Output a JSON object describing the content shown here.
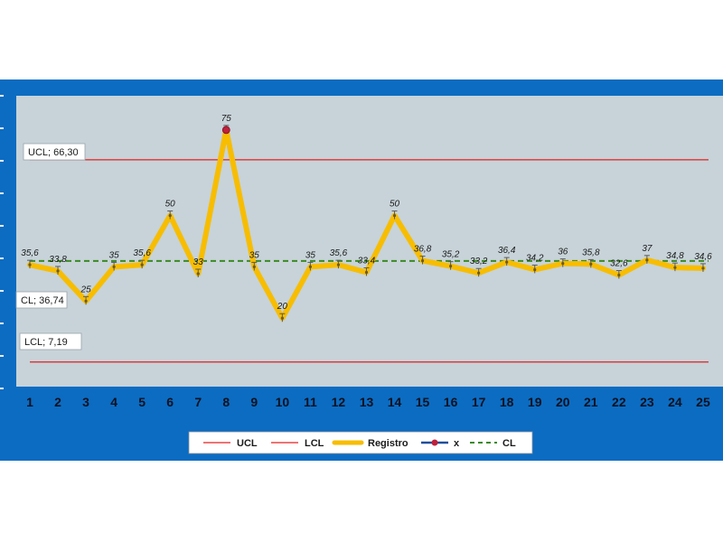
{
  "chart_data": {
    "type": "line",
    "title": "",
    "xlabel": "",
    "ylabel": "",
    "ylim": [
      0,
      85
    ],
    "grid": false,
    "legend_placement": "bottom",
    "x": [
      1,
      2,
      3,
      4,
      5,
      6,
      7,
      8,
      9,
      10,
      11,
      12,
      13,
      14,
      15,
      16,
      17,
      18,
      19,
      20,
      21,
      22,
      23,
      24,
      25
    ],
    "x_tick_labels": [
      "1",
      "2",
      "3",
      "4",
      "5",
      "6",
      "7",
      "8",
      "9",
      "10",
      "11",
      "12",
      "13",
      "14",
      "15",
      "16",
      "17",
      "18",
      "19",
      "20",
      "21",
      "22",
      "23",
      "24",
      "25"
    ],
    "series": [
      {
        "name": "Registro",
        "color": "#f7bd00",
        "values": [
          35.6,
          33.8,
          25,
          35,
          35.6,
          50,
          33,
          75,
          35,
          20,
          35,
          35.6,
          33.4,
          50,
          36.8,
          35.2,
          33.2,
          36.4,
          34.2,
          36,
          35.8,
          32.6,
          37,
          34.8,
          34.6
        ],
        "data_labels": [
          "35,6",
          "33,8",
          "25",
          "35",
          "35,6",
          "50",
          "33",
          "75",
          "35",
          "20",
          "35",
          "35,6",
          "33,4",
          "50",
          "36,8",
          "35,2",
          "33,2",
          "36,4",
          "34,2",
          "36",
          "35,8",
          "32,6",
          "37",
          "34,8",
          "34,6"
        ]
      },
      {
        "name": "x",
        "color": "#c0203a",
        "marker_color": "#c0203a",
        "line_color": "#1f4e9c",
        "points": [
          {
            "x": 8,
            "y": 75
          }
        ]
      }
    ],
    "reference_lines": [
      {
        "name": "UCL",
        "value": 66.3,
        "label": "UCL; 66,30",
        "color": "#e02020",
        "style": "solid"
      },
      {
        "name": "LCL",
        "value": 7.19,
        "label": "LCL; 7,19",
        "color": "#e02020",
        "style": "solid"
      },
      {
        "name": "CL",
        "value": 36.74,
        "label": "CL; 36,74",
        "color": "#3a8a22",
        "style": "dashed"
      }
    ],
    "legend": [
      {
        "label": "UCL",
        "kind": "line",
        "color": "#e02020"
      },
      {
        "label": "LCL",
        "kind": "line",
        "color": "#e02020"
      },
      {
        "label": "Registro",
        "kind": "thick",
        "color": "#f7bd00"
      },
      {
        "label": "x",
        "kind": "marker",
        "color": "#1f4e9c",
        "marker_color": "#c0203a"
      },
      {
        "label": "CL",
        "kind": "dashed",
        "color": "#3a8a22"
      }
    ],
    "plot_background": "#c7d3d9",
    "frame_background": "#0c6cc2"
  }
}
